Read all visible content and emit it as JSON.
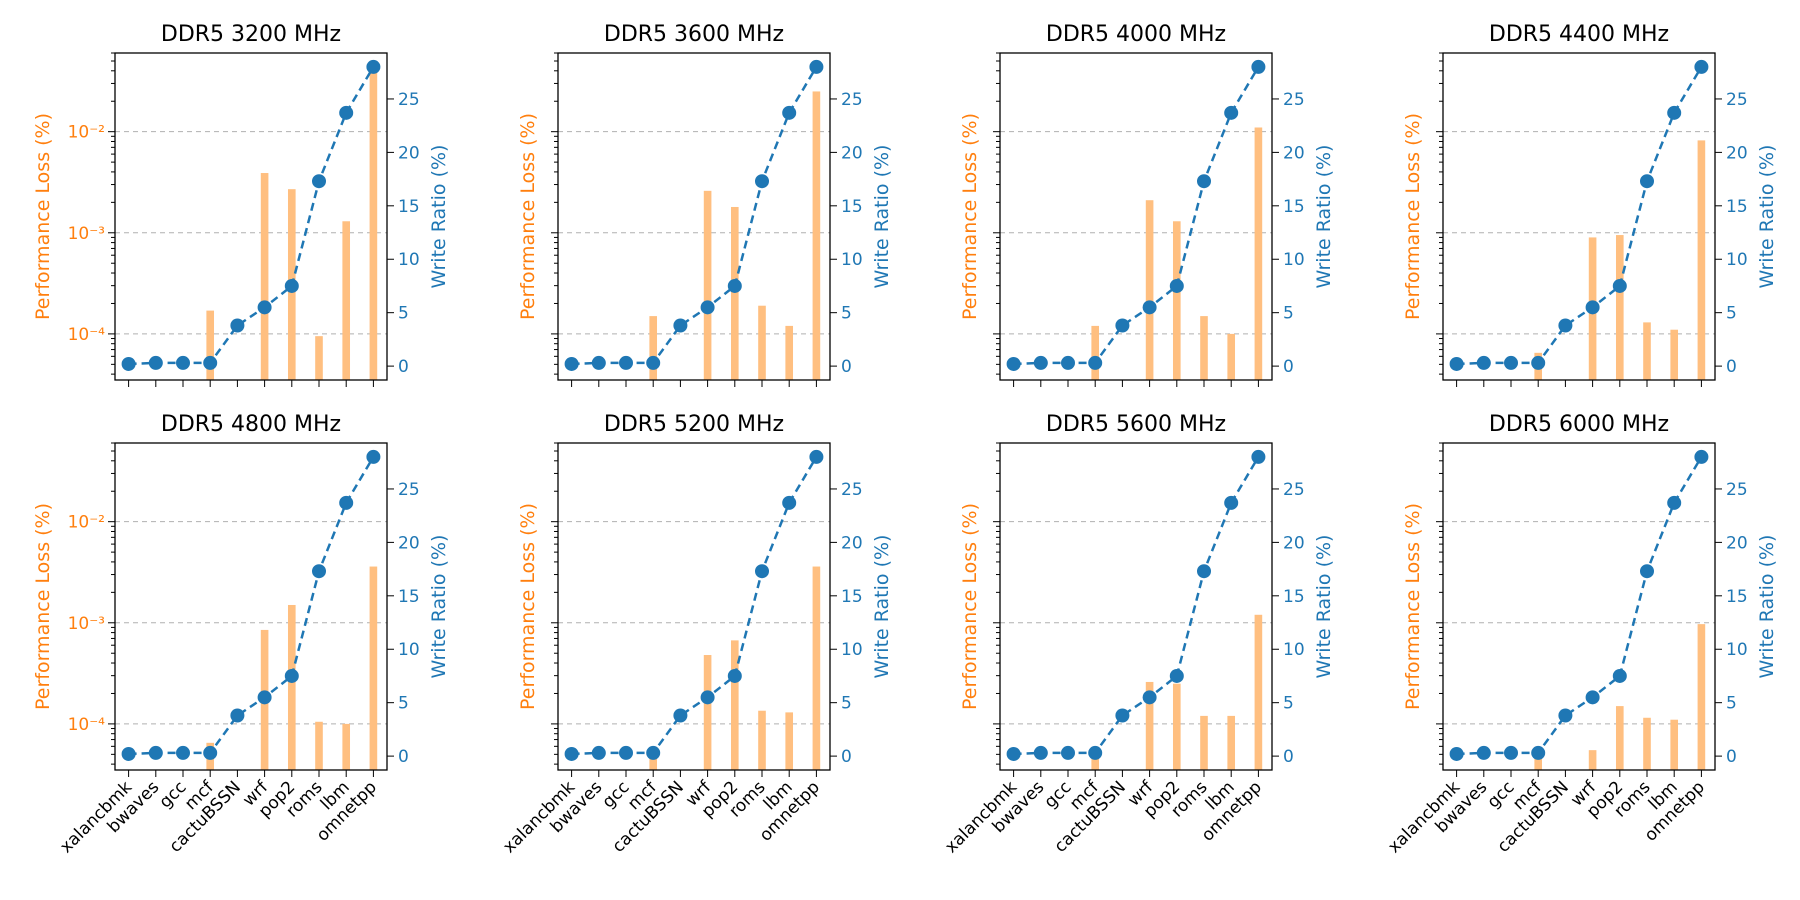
{
  "chart_data": {
    "type": "bar+line",
    "categories": [
      "xalancbmk",
      "bwaves",
      "gcc",
      "mcf",
      "cactuBSSN",
      "wrf",
      "pop2",
      "roms",
      "lbm",
      "omnetpp"
    ],
    "left_axis": {
      "label": "Performance Loss (%)",
      "scale": "log",
      "ticks": [
        "10⁻⁴",
        "10⁻³",
        "10⁻²"
      ],
      "color": "#ff7f0e",
      "bar_color": "#ffbf80",
      "ylim": [
        3.5e-05,
        0.06
      ]
    },
    "right_axis": {
      "label": "Write Ratio (%)",
      "scale": "linear",
      "ticks": [
        0,
        5,
        10,
        15,
        20,
        25
      ],
      "color": "#1f77b4",
      "ylim": [
        -1.3,
        29.3
      ]
    },
    "write_ratio": [
      0.2,
      0.3,
      0.3,
      0.3,
      3.8,
      5.5,
      7.5,
      17.3,
      23.7,
      28.0
    ],
    "grid": "y-major-dashed",
    "panels": [
      {
        "title": "DDR5 3200 MHz",
        "perf_loss": [
          null,
          null,
          null,
          0.00017,
          null,
          0.0039,
          0.0027,
          9.5e-05,
          0.0013,
          0.042
        ]
      },
      {
        "title": "DDR5 3600 MHz",
        "perf_loss": [
          null,
          null,
          null,
          0.00015,
          null,
          0.0026,
          0.0018,
          0.00019,
          0.00012,
          0.025
        ]
      },
      {
        "title": "DDR5 4000 MHz",
        "perf_loss": [
          null,
          null,
          null,
          0.00012,
          null,
          0.0021,
          0.0013,
          0.00015,
          0.0001,
          0.011
        ]
      },
      {
        "title": "DDR5 4400 MHz",
        "perf_loss": [
          null,
          null,
          null,
          6.5e-05,
          null,
          0.0009,
          0.00095,
          0.00013,
          0.00011,
          0.0082
        ]
      },
      {
        "title": "DDR5 4800 MHz",
        "perf_loss": [
          null,
          null,
          null,
          6.5e-05,
          null,
          0.00085,
          0.0015,
          0.000105,
          0.0001,
          0.0036
        ]
      },
      {
        "title": "DDR5 5200 MHz",
        "perf_loss": [
          null,
          null,
          null,
          5e-05,
          null,
          0.00048,
          0.00067,
          0.000135,
          0.00013,
          0.0036
        ]
      },
      {
        "title": "DDR5 5600 MHz",
        "perf_loss": [
          null,
          null,
          null,
          5.5e-05,
          null,
          0.00026,
          0.00025,
          0.00012,
          0.00012,
          0.0012
        ]
      },
      {
        "title": "DDR5 6000 MHz",
        "perf_loss": [
          null,
          null,
          null,
          5e-05,
          null,
          5.5e-05,
          0.00015,
          0.000115,
          0.00011,
          0.00097
        ]
      }
    ]
  }
}
